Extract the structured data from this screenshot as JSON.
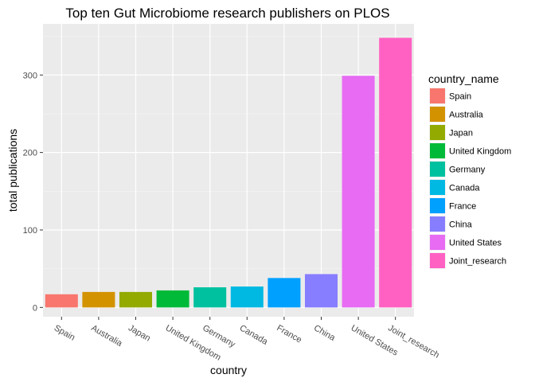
{
  "chart_data": {
    "type": "bar",
    "title": "Top ten Gut Microbiome research publishers on PLOS",
    "xlabel": "country",
    "ylabel": "total publications",
    "categories": [
      "Spain",
      "Australia",
      "Japan",
      "United Kingdom",
      "Germany",
      "Canada",
      "France",
      "China",
      "United States",
      "Joint_research"
    ],
    "values": [
      17,
      20,
      20,
      22,
      26,
      27,
      38,
      43,
      299,
      348
    ],
    "colors": [
      "#F8766D",
      "#D39200",
      "#93AA00",
      "#00BA38",
      "#00C19F",
      "#00B9E3",
      "#00A0FF",
      "#877DFF",
      "#E76BF3",
      "#FF61C3"
    ],
    "ylim": [
      -12,
      366
    ],
    "yticks": [
      0,
      100,
      200,
      300
    ],
    "grid": true,
    "legend": {
      "title": "country_name",
      "placement": "right",
      "entries": [
        "Spain",
        "Australia",
        "Japan",
        "United Kingdom",
        "Germany",
        "Canada",
        "France",
        "China",
        "United States",
        "Joint_research"
      ]
    }
  }
}
